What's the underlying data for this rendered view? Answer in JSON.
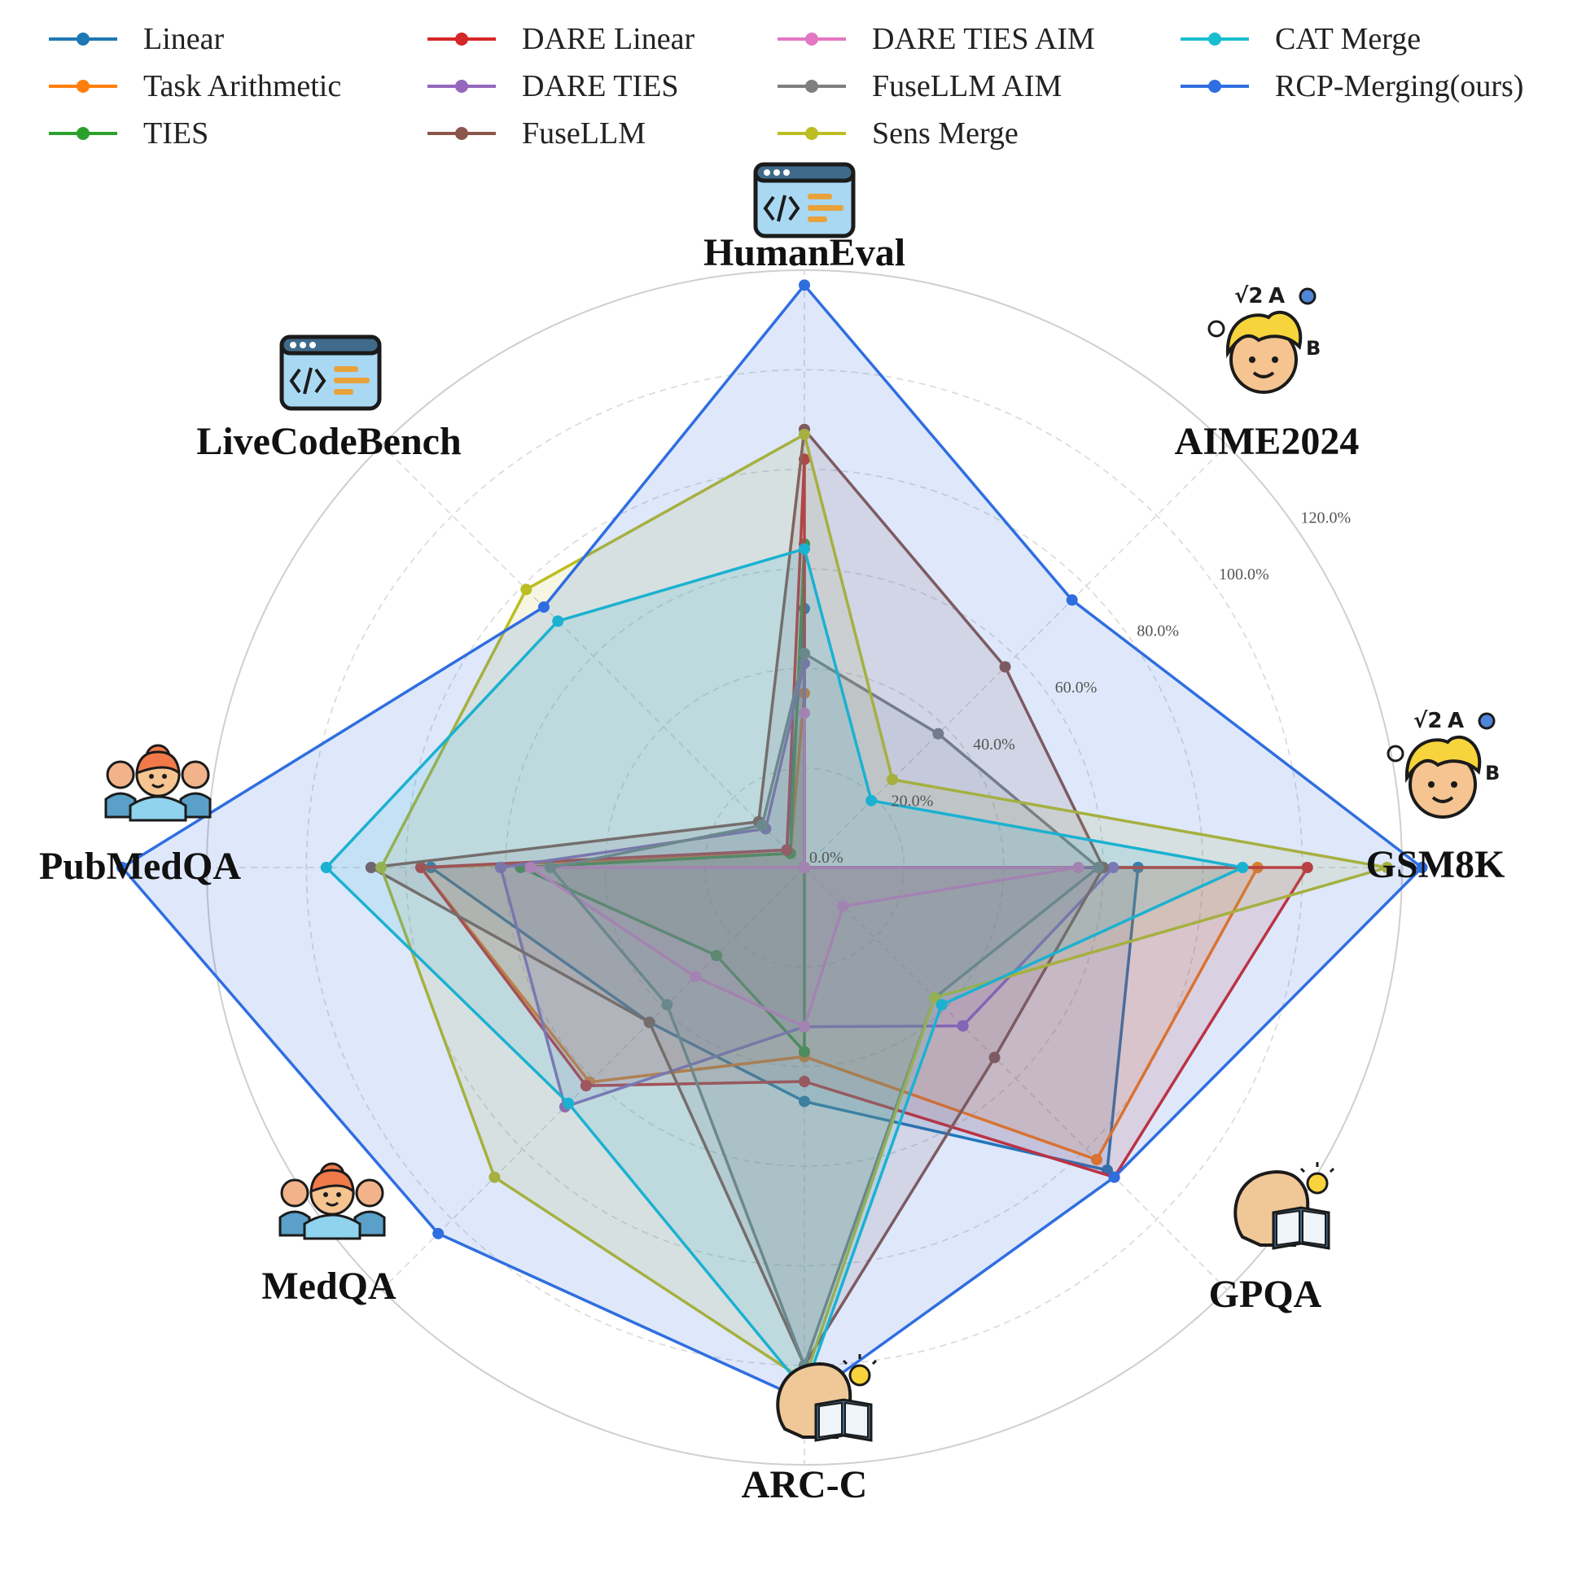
{
  "chart_data": {
    "type": "radar",
    "title": "",
    "axes": [
      "HumanEval",
      "AIME2024",
      "GSM8K",
      "GPQA",
      "ARC-C",
      "MedQA",
      "PubMedQA",
      "LiveCodeBench"
    ],
    "radial_ticks": [
      "0.0%",
      "20.0%",
      "40.0%",
      "60.0%",
      "80.0%",
      "100.0%",
      "120.0%"
    ],
    "radial_range": [
      0,
      120
    ],
    "grid": true,
    "legend_position": "top",
    "series": [
      {
        "name": "Linear",
        "color": "#1f77b4",
        "values": [
          52,
          0,
          67,
          86,
          47,
          44,
          75,
          5
        ]
      },
      {
        "name": "Task Arithmetic",
        "color": "#ff7f0e",
        "values": [
          35,
          0,
          91,
          83,
          38,
          61,
          77,
          4
        ]
      },
      {
        "name": "TIES",
        "color": "#2ca02c",
        "values": [
          65,
          0,
          60,
          0,
          37,
          25,
          57,
          4
        ]
      },
      {
        "name": "DARE Linear",
        "color": "#d62728",
        "values": [
          82,
          0,
          101,
          88,
          43,
          62,
          77,
          5
        ]
      },
      {
        "name": "DARE TIES",
        "color": "#9467bd",
        "values": [
          41,
          0,
          62,
          45,
          32,
          68,
          61,
          11
        ]
      },
      {
        "name": "FuseLLM",
        "color": "#8c564b",
        "values": [
          88,
          57,
          60,
          54,
          100,
          44,
          87,
          13
        ]
      },
      {
        "name": "DARE TIES AIM",
        "color": "#e377c2",
        "values": [
          31,
          0,
          55,
          11,
          32,
          31,
          55,
          0
        ]
      },
      {
        "name": "FuseLLM AIM",
        "color": "#7f7f7f",
        "values": [
          43,
          38,
          59,
          37,
          100,
          39,
          51,
          12
        ]
      },
      {
        "name": "Sens Merge",
        "color": "#bcbd22",
        "values": [
          87,
          25,
          117,
          37,
          103,
          88,
          85,
          79
        ]
      },
      {
        "name": "CAT Merge",
        "color": "#17becf",
        "values": [
          64,
          19,
          88,
          39,
          105,
          67,
          96,
          70
        ]
      },
      {
        "name": "RCP-Merging(ours)",
        "color": "#2f6ee0",
        "values": [
          117,
          76,
          124,
          88,
          107,
          104,
          137,
          74
        ]
      }
    ]
  }
}
